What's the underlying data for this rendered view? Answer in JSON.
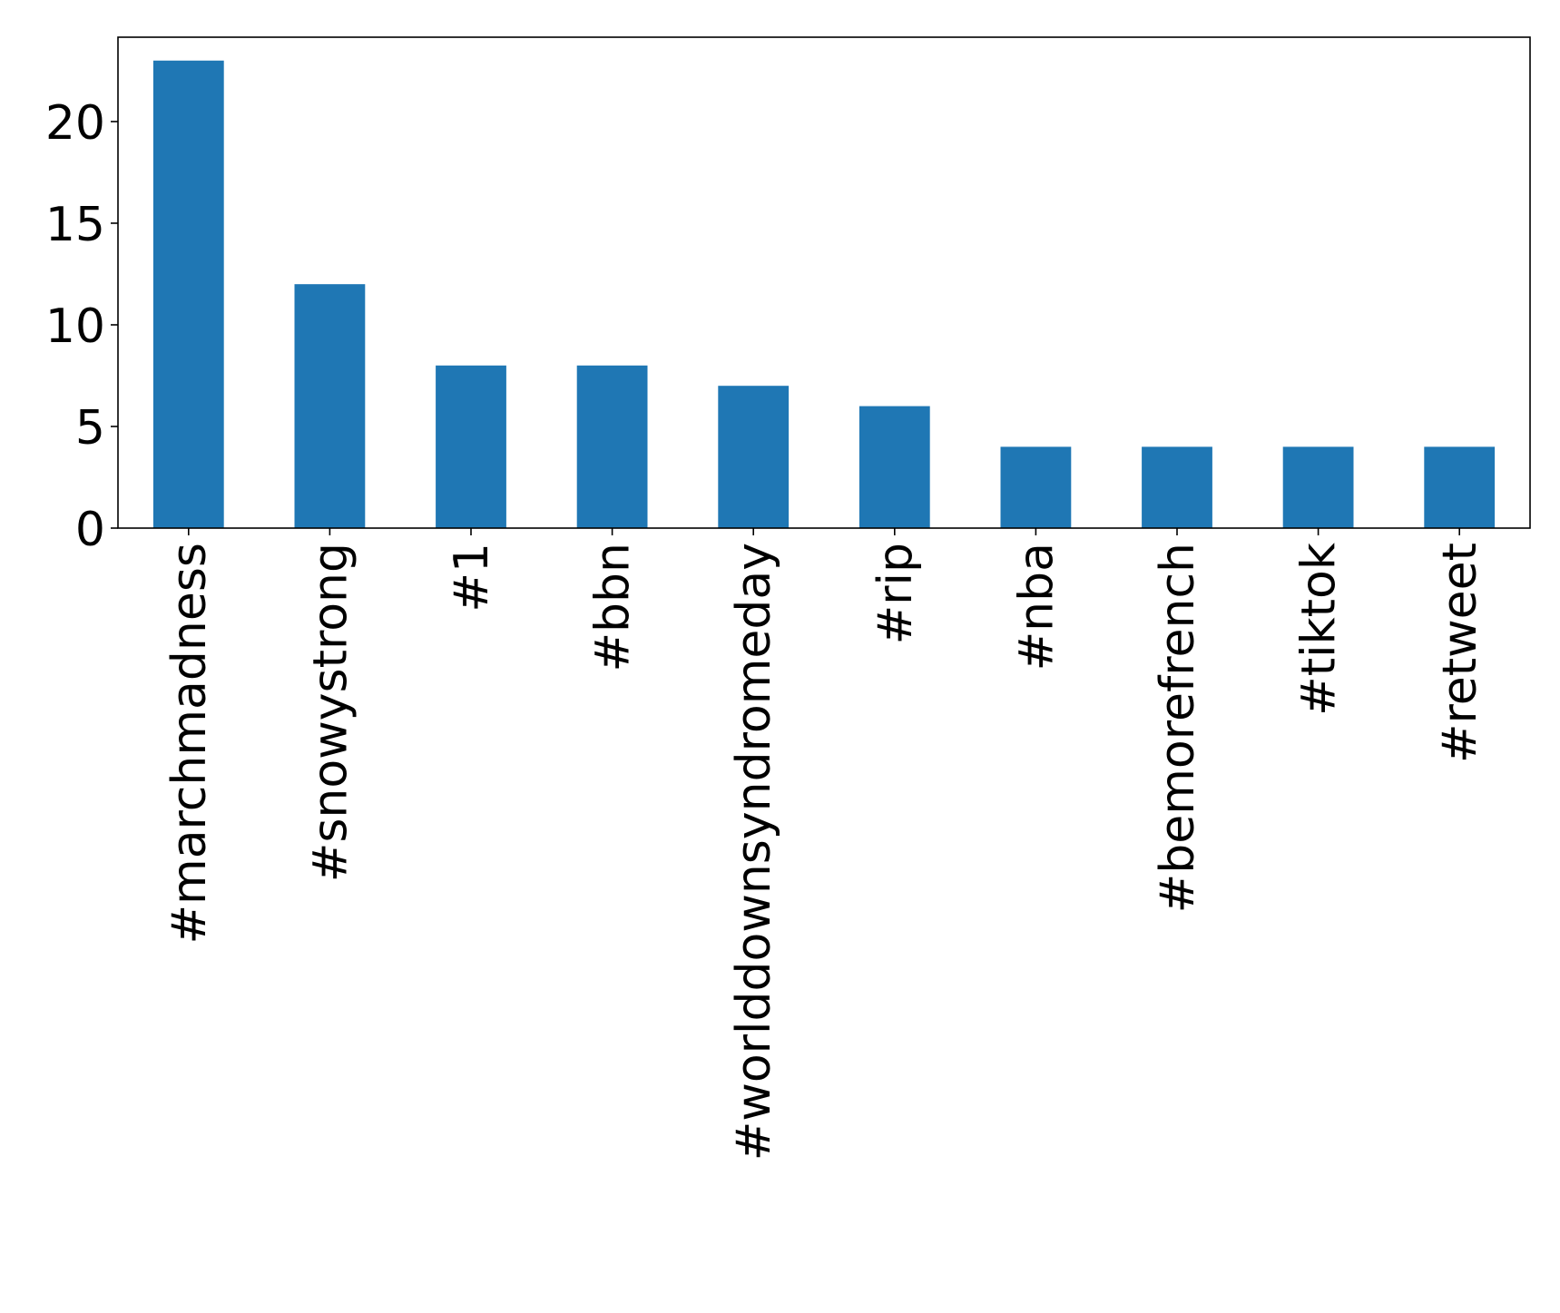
{
  "chart_data": {
    "type": "bar",
    "title": "",
    "xlabel": "",
    "ylabel": "",
    "categories": [
      "#marchmadness",
      "#snowystrong",
      "#1",
      "#bbn",
      "#worlddownsyndromeday",
      "#rip",
      "#nba",
      "#bemorefrench",
      "#tiktok",
      "#retweet"
    ],
    "values": [
      23,
      12,
      8,
      8,
      7,
      6,
      4,
      4,
      4,
      4
    ],
    "ylim": [
      0,
      24.15
    ],
    "yticks": [
      0,
      5,
      10,
      15,
      20
    ],
    "ytick_labels": [
      "0",
      "5",
      "10",
      "15",
      "20"
    ],
    "bar_color": "#1f77b4",
    "grid": false,
    "legend": "none"
  }
}
